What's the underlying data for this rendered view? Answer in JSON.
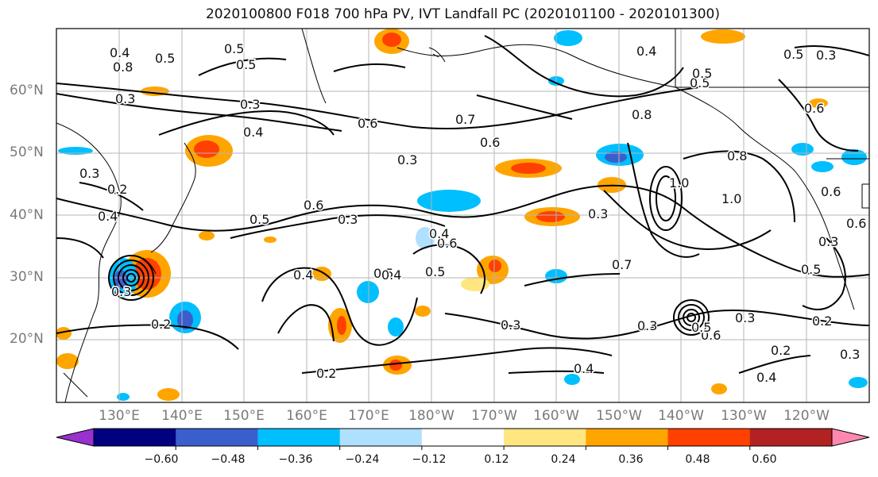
{
  "title": "2020100800 F018 700 hPa PV, IVT Landfall PC (2020101100 - 2020101300)",
  "lat_labels": [
    "60°N",
    "50°N",
    "40°N",
    "30°N",
    "20°N"
  ],
  "lon_labels": [
    "130°E",
    "140°E",
    "150°E",
    "160°E",
    "170°E",
    "180°W",
    "170°W",
    "160°W",
    "150°W",
    "140°W",
    "130°W",
    "120°W"
  ],
  "colorbar": {
    "colors": [
      "#9b30d0",
      "#000080",
      "#3a5fcd",
      "#00bfff",
      "#b0e0ff",
      "#ffffff",
      "#ffe680",
      "#ffa500",
      "#ff4000",
      "#b22222",
      "#ff88b0"
    ],
    "ticks": [
      "−0.60",
      "−0.48",
      "−0.36",
      "−0.24",
      "−0.12",
      "0.12",
      "0.24",
      "0.36",
      "0.48",
      "0.60"
    ]
  },
  "contour_labels": [
    "0.4",
    "0.5",
    "0.8",
    "0.3",
    "0.2",
    "0.3",
    "0.4",
    "0.5",
    "0.3",
    "0.4",
    "0.6",
    "0.5",
    "0.3",
    "0.7",
    "0.6",
    "0.3",
    "0.5",
    "0.6",
    "0.5",
    "0.4",
    "0.5",
    "0.4",
    "0.3",
    "0.7",
    "0.8",
    "0.6",
    "0.5",
    "0.8",
    "1.0",
    "1.0",
    "0.3",
    "0.5",
    "0.4",
    "0.5",
    "0.6",
    "0.3",
    "0.6",
    "0.3",
    "0.2",
    "0.3",
    "0.4",
    "0.3",
    "0.2",
    "0.3",
    "0.4",
    "0.5",
    "0.2",
    "0.2",
    "0.3",
    "0.4",
    "0.6",
    "0.5",
    "0.6"
  ]
}
